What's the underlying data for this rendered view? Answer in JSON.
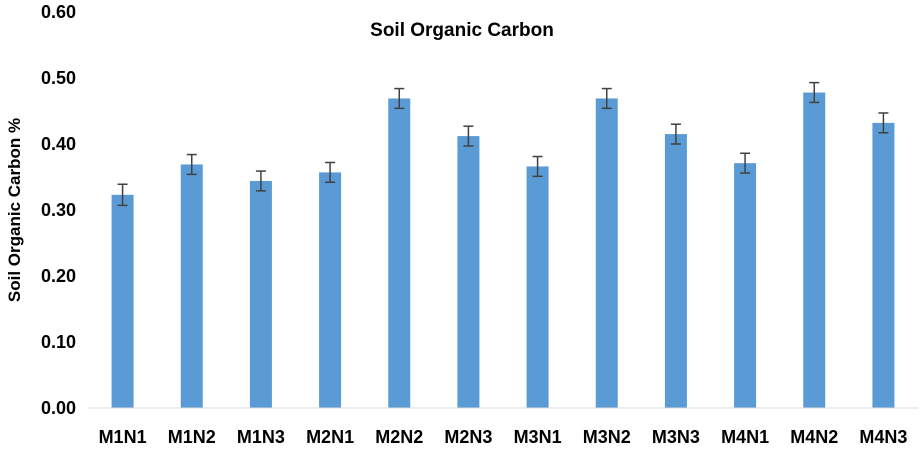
{
  "chart_data": {
    "type": "bar",
    "title": "Soil Organic Carbon",
    "xlabel": "",
    "ylabel": "Soil Organic Carbon %",
    "ylim": [
      0,
      0.6
    ],
    "yticks": [
      "0.00",
      "0.10",
      "0.20",
      "0.30",
      "0.40",
      "0.50",
      "0.60"
    ],
    "grid": false,
    "legend": "none",
    "bar_color": "#5b9bd5",
    "error_bar_color": "#404040",
    "categories": [
      "M1N1",
      "M1N2",
      "M1N3",
      "M2N1",
      "M2N2",
      "M2N3",
      "M3N1",
      "M3N2",
      "M3N3",
      "M4N1",
      "M4N2",
      "M4N3"
    ],
    "values": [
      0.323,
      0.369,
      0.344,
      0.357,
      0.469,
      0.412,
      0.366,
      0.469,
      0.415,
      0.371,
      0.478,
      0.432
    ],
    "errors": [
      0.016,
      0.015,
      0.015,
      0.015,
      0.015,
      0.015,
      0.015,
      0.015,
      0.015,
      0.015,
      0.015,
      0.015
    ]
  }
}
